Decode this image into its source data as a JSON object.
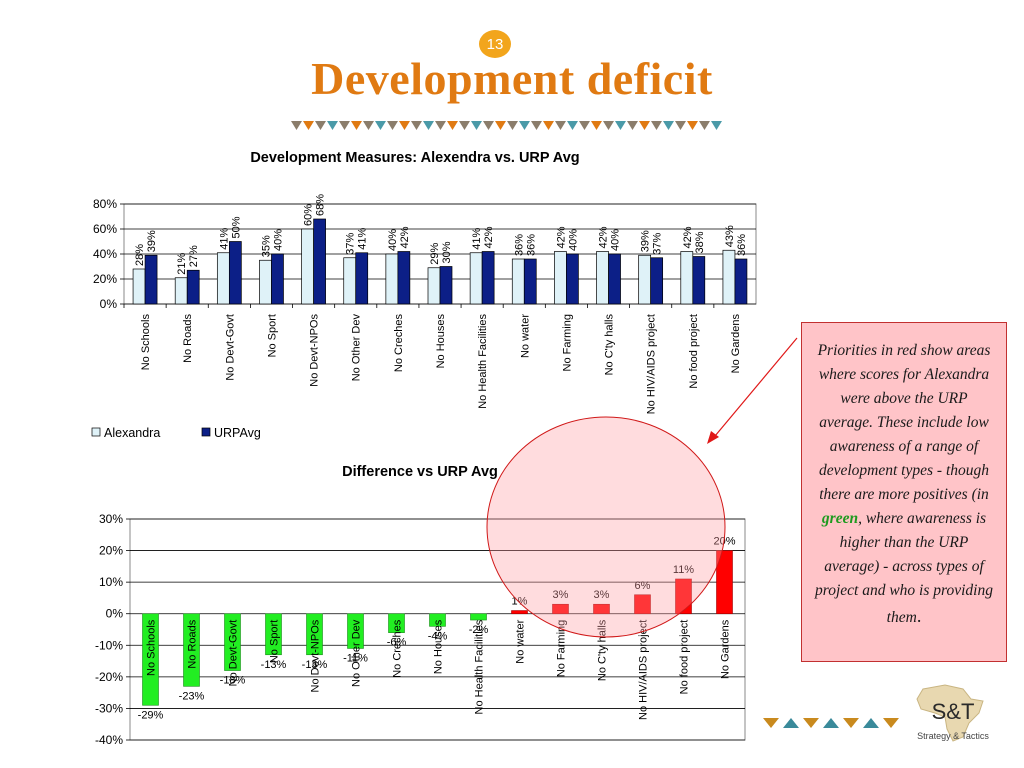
{
  "slide": {
    "number": "13",
    "title": "Development deficit"
  },
  "note": {
    "before": "Priorities in red show areas where scores for Alexandra were above the URP average. These include low awareness of  a range of  development types - though there are more positives (in ",
    "green_word": "green",
    "after": ", where awareness is higher than the URP average) - across types of  project and who is providing them",
    "end": "."
  },
  "logo": {
    "name": "S&T",
    "tagline": "Strategy & Tactics"
  },
  "colors": {
    "title": "#e07a12",
    "alexandra": "#dff2f8",
    "urp": "#0c1f87",
    "negative": "#22ee22",
    "positive": "#ff0000",
    "highlight_circle": "#ff9aa0",
    "slide_number_badge": "#f2a51c"
  },
  "chart_data": [
    {
      "type": "bar",
      "title": "Development Measures: Alexendra vs. URP Avg",
      "categories": [
        "No Schools",
        "No Roads",
        "No Devt-Govt",
        "No Sport",
        "No Devt-NPOs",
        "No Other Dev",
        "No Creches",
        "No Houses",
        "No Health Facilities",
        "No water",
        "No Farming",
        "No C'ty halls",
        "No HIV/AIDS project",
        "No food project",
        "No Gardens"
      ],
      "series": [
        {
          "name": "Alexandra",
          "values": [
            28,
            21,
            41,
            35,
            60,
            37,
            40,
            29,
            41,
            36,
            42,
            42,
            39,
            42,
            43
          ],
          "labels": [
            "28%",
            "21%",
            "41%",
            "35%",
            "60%",
            "37%",
            "40%",
            "29%",
            "41%",
            "36%",
            "42%",
            "42%",
            "39%",
            "42%",
            "43%"
          ]
        },
        {
          "name": "URPAvg",
          "values": [
            39,
            27,
            50,
            40,
            68,
            41,
            42,
            30,
            42,
            36,
            40,
            40,
            37,
            38,
            36
          ],
          "labels": [
            "39%",
            "27%",
            "50%",
            "40%",
            "68%",
            "41%",
            "42%",
            "30%",
            "42%",
            "36%",
            "40%",
            "40%",
            "37%",
            "38%",
            "36%"
          ]
        }
      ],
      "ylim": [
        0,
        80
      ],
      "yticks": [
        "0%",
        "20%",
        "40%",
        "60%",
        "80%"
      ],
      "grid": true,
      "legend": "bottom-left"
    },
    {
      "type": "bar",
      "title": "Difference vs URP Avg",
      "categories": [
        "No Schools",
        "No Roads",
        "No Devt-Govt",
        "No Sport",
        "No Devt-NPOs",
        "No Other Dev",
        "No Creches",
        "No Houses",
        "No Health Facilities",
        "No water",
        "No Farming",
        "No C'ty halls",
        "No HIV/AIDS project",
        "No food project",
        "No Gardens"
      ],
      "values": [
        -29,
        -23,
        -18,
        -13,
        -13,
        -11,
        -6,
        -4,
        -2,
        1,
        3,
        3,
        6,
        11,
        20
      ],
      "labels": [
        "-29%",
        "-23%",
        "-18%",
        "-13%",
        "-13%",
        "-11%",
        "-6%",
        "-4%",
        "-2%",
        "1%",
        "3%",
        "3%",
        "6%",
        "11%",
        "20%"
      ],
      "ylim": [
        -40,
        30
      ],
      "yticks": [
        "-40%",
        "-30%",
        "-20%",
        "-10%",
        "0%",
        "10%",
        "20%",
        "30%"
      ],
      "grid": true
    }
  ]
}
